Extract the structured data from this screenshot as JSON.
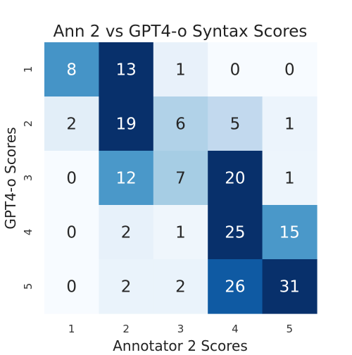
{
  "chart_data": {
    "type": "heatmap",
    "title": "Ann 2 vs GPT4-o Syntax Scores",
    "xlabel": "Annotator 2 Scores",
    "ylabel": "GPT4-o Scores",
    "x_ticks": [
      "1",
      "2",
      "3",
      "4",
      "5"
    ],
    "y_ticks": [
      "1",
      "2",
      "3",
      "4",
      "5"
    ],
    "colormap": "Blues",
    "colorbar": false,
    "row_max_normalized": true,
    "matrix": [
      [
        8,
        13,
        1,
        0,
        0
      ],
      [
        2,
        19,
        6,
        5,
        1
      ],
      [
        0,
        12,
        7,
        20,
        1
      ],
      [
        0,
        2,
        1,
        25,
        15
      ],
      [
        0,
        2,
        2,
        26,
        31
      ]
    ]
  }
}
